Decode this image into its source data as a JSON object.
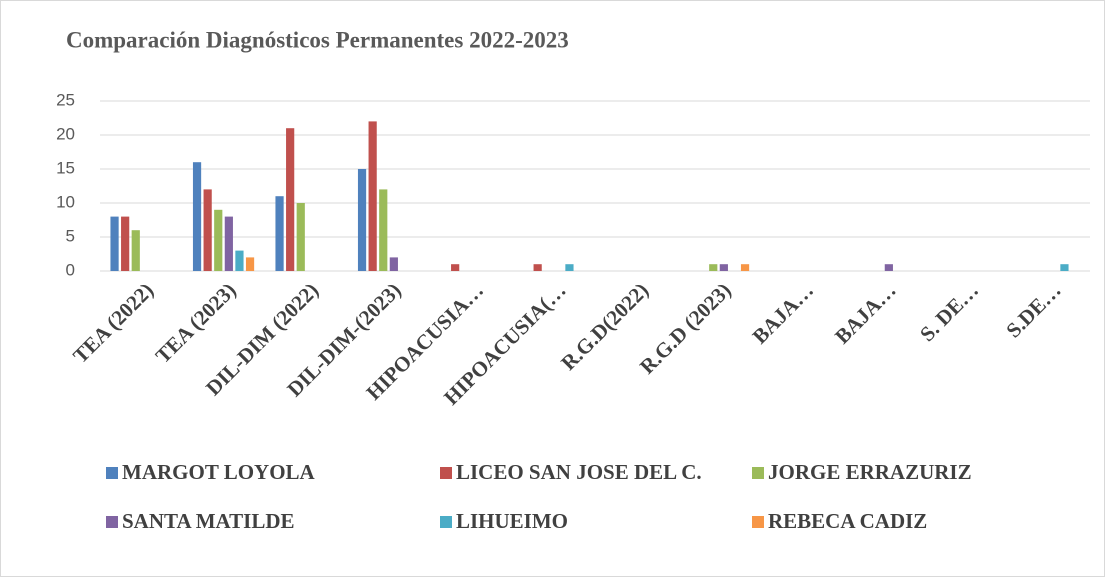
{
  "chart_data": {
    "type": "bar",
    "title": "Comparación Diagnósticos Permanentes 2022-2023",
    "categories": [
      "TEA (2022)",
      "TEA (2023)",
      "DIL-DIM (2022)",
      "DIL-DIM-(2023)",
      "HIPOACUSIA…",
      "HIPOACUSIA(…",
      "R.G.D(2022)",
      "R.G.D (2023)",
      "BAJA…",
      "BAJA…",
      "S. DE…",
      "S.DE…"
    ],
    "series": [
      {
        "name": "MARGOT LOYOLA",
        "color": "#4f81bd",
        "values": [
          8,
          16,
          11,
          15,
          0,
          0,
          0,
          0,
          0,
          0,
          0,
          0
        ]
      },
      {
        "name": "LICEO SAN JOSE DEL C.",
        "color": "#c0504d",
        "values": [
          8,
          12,
          21,
          22,
          1,
          1,
          0,
          0,
          0,
          0,
          0,
          0
        ]
      },
      {
        "name": "JORGE ERRAZURIZ",
        "color": "#9bbb59",
        "values": [
          6,
          9,
          10,
          12,
          0,
          0,
          0,
          1,
          0,
          0,
          0,
          0
        ]
      },
      {
        "name": "SANTA MATILDE",
        "color": "#8064a2",
        "values": [
          0,
          8,
          0,
          2,
          0,
          0,
          0,
          1,
          0,
          1,
          0,
          0
        ]
      },
      {
        "name": "LIHUEIMO",
        "color": "#4bacc6",
        "values": [
          0,
          3,
          0,
          0,
          0,
          1,
          0,
          0,
          0,
          0,
          0,
          1
        ]
      },
      {
        "name": "REBECA CADIZ",
        "color": "#f79646",
        "values": [
          0,
          2,
          0,
          0,
          0,
          0,
          0,
          1,
          0,
          0,
          0,
          0
        ]
      }
    ],
    "ylim": [
      0,
      25
    ],
    "yticks": [
      0,
      5,
      10,
      15,
      20,
      25
    ],
    "grid": true,
    "legend": "bottom"
  }
}
